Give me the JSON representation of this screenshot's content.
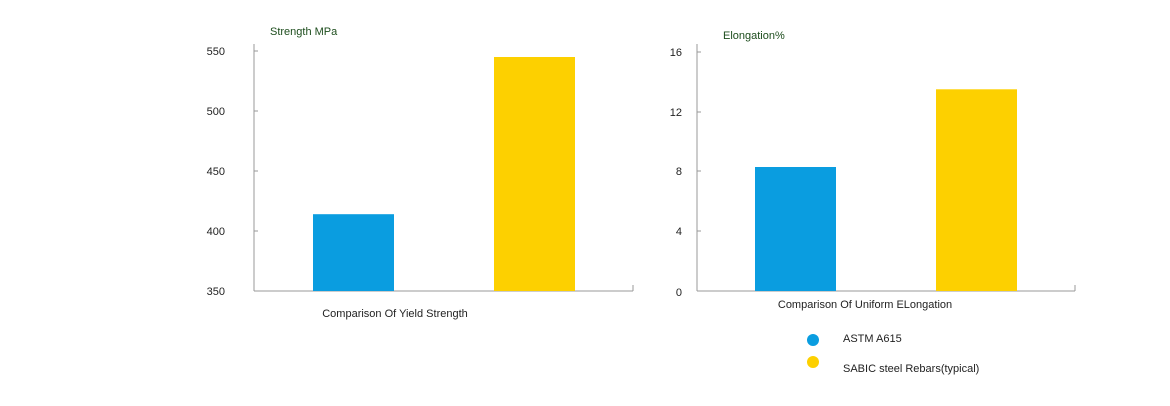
{
  "colors": {
    "astm": "#0a9de0",
    "sabic": "#fdd000",
    "axis": "#999999",
    "axis_label": "#1d4d1d",
    "text": "#222222"
  },
  "chart_data": [
    {
      "type": "bar",
      "title": "",
      "ylabel": "Strength MPa",
      "xlabel": "Comparison Of Yield Strength",
      "ylim": [
        350,
        550
      ],
      "yticks": [
        "550",
        "500",
        "450",
        "400",
        "350"
      ],
      "grid": false,
      "categories": [
        "ASTM A615",
        "SABIC steel Rebars(typical)"
      ],
      "values": [
        414,
        545
      ]
    },
    {
      "type": "bar",
      "title": "",
      "ylabel": "Elongation%",
      "xlabel": "Comparison Of Uniform ELongation",
      "ylim": [
        0,
        16
      ],
      "yticks": [
        "16",
        "12",
        "8",
        "4",
        "0"
      ],
      "grid": false,
      "categories": [
        "ASTM A615",
        "SABIC steel Rebars(typical)"
      ],
      "values": [
        8.3,
        13.5
      ]
    }
  ],
  "legend": {
    "placement": "bottom-right",
    "items": [
      "ASTM A615",
      "SABIC steel Rebars(typical)"
    ]
  }
}
